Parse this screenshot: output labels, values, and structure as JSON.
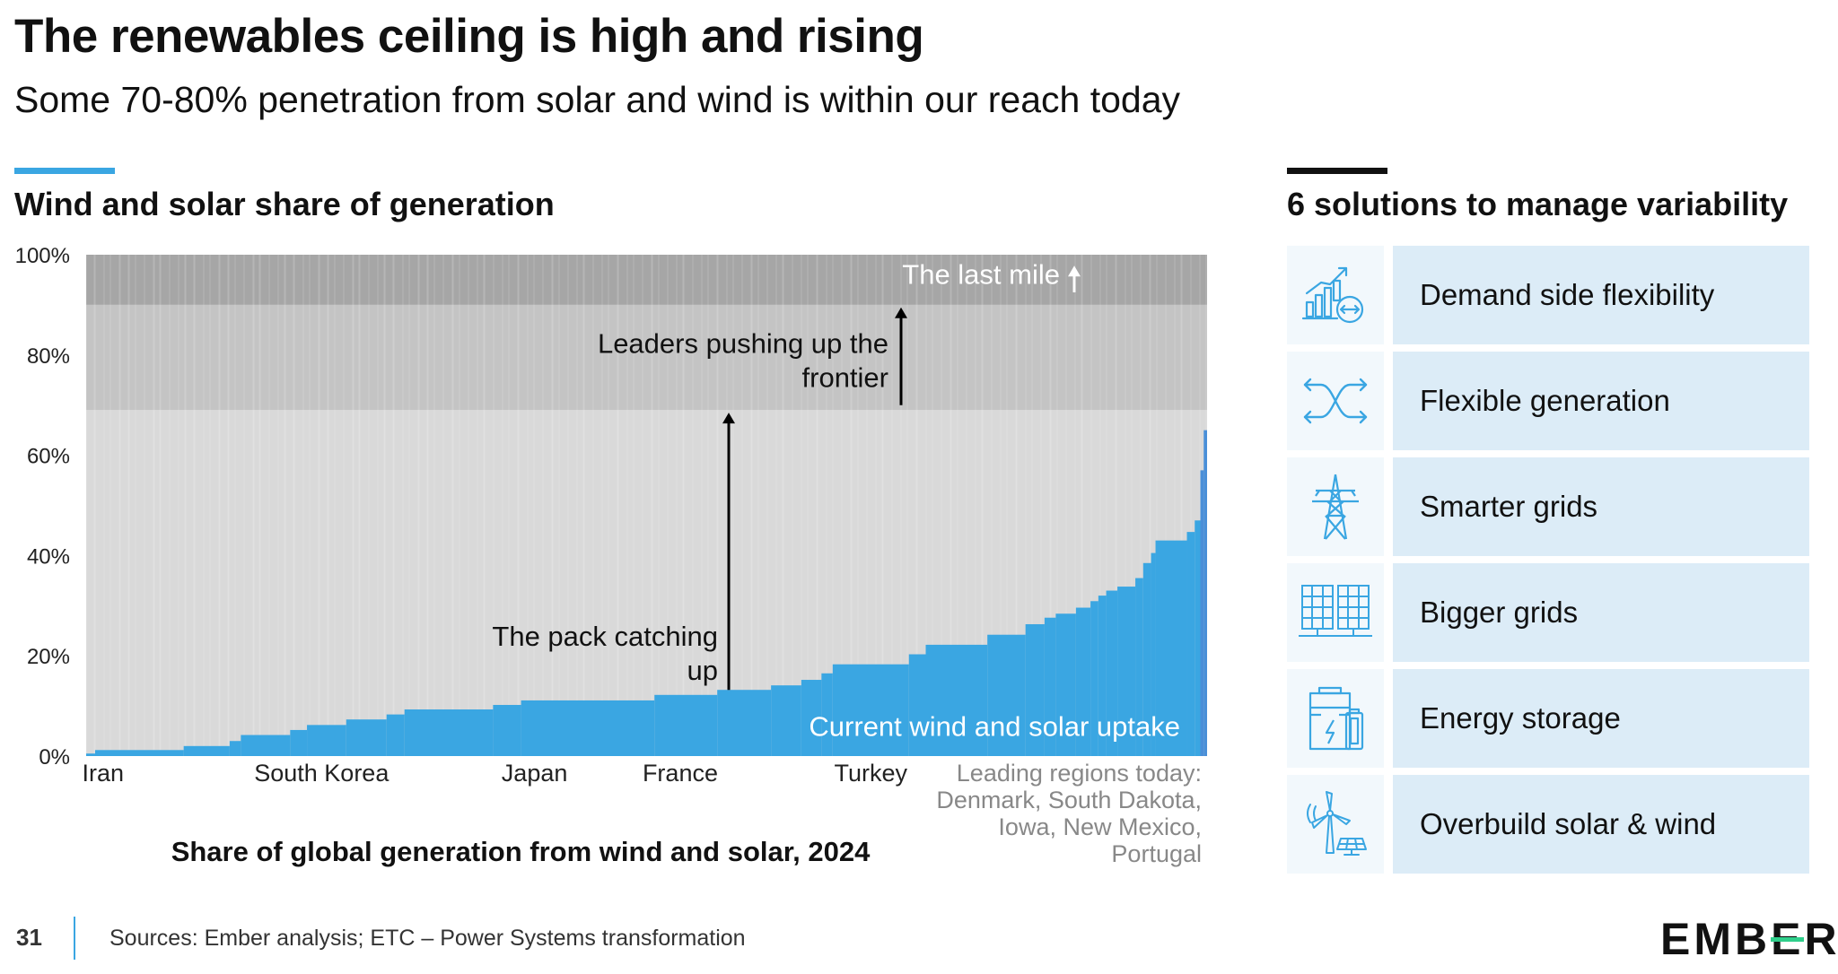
{
  "title": "The renewables ceiling is high and rising",
  "subtitle": "Some 70-80% penetration from solar and wind is within our reach today",
  "chart_section_title": "Wind and solar share of generation",
  "solutions_title": "6 solutions to manage variability",
  "colors": {
    "accent_blue": "#3aa6e2",
    "bar_blue": "#3aa6e2",
    "band_light": "#d9d9d9",
    "band_mid": "#c4c4c4",
    "band_dark": "#a6a6a6",
    "solution_bg": "#dcecf7",
    "logo_green": "#2fcf8b"
  },
  "chart_data": {
    "type": "bar",
    "title": "Wind and solar share of generation",
    "xlabel": "Share of global generation from wind and solar, 2024",
    "ylabel": "",
    "ylim": [
      0,
      100
    ],
    "yticks": [
      "0%",
      "20%",
      "40%",
      "60%",
      "80%",
      "100%"
    ],
    "xlim": [
      0,
      100
    ],
    "x_category_labels": [
      {
        "label": "Iran",
        "x": 1.5
      },
      {
        "label": "South Korea",
        "x": 21
      },
      {
        "label": "Japan",
        "x": 40
      },
      {
        "label": "France",
        "x": 53
      },
      {
        "label": "Turkey",
        "x": 70
      }
    ],
    "leading_regions_label": [
      "Leading regions today:",
      "Denmark, South Dakota,",
      "Iowa, New Mexico,",
      "Portugal"
    ],
    "bands": [
      {
        "name": "The pack catching up",
        "from": 0,
        "to": 69
      },
      {
        "name": "Leaders pushing up the frontier",
        "from": 69,
        "to": 90
      },
      {
        "name": "The last mile",
        "from": 90,
        "to": 100
      }
    ],
    "annotations": {
      "pack": [
        "The pack catching",
        "up"
      ],
      "leaders": [
        "Leaders pushing up the",
        "frontier"
      ],
      "last_mile": "The last mile",
      "current": "Current wind and solar uptake"
    },
    "series": [
      {
        "name": "Wind and solar share",
        "segments": [
          {
            "x0": 0.0,
            "x1": 0.8,
            "y": 0.5
          },
          {
            "x0": 0.8,
            "x1": 8.7,
            "y": 1.2
          },
          {
            "x0": 8.7,
            "x1": 12.8,
            "y": 2.0
          },
          {
            "x0": 12.8,
            "x1": 13.8,
            "y": 3.0
          },
          {
            "x0": 13.8,
            "x1": 18.2,
            "y": 4.2
          },
          {
            "x0": 18.2,
            "x1": 19.7,
            "y": 5.2
          },
          {
            "x0": 19.7,
            "x1": 23.2,
            "y": 6.2
          },
          {
            "x0": 23.2,
            "x1": 26.8,
            "y": 7.3
          },
          {
            "x0": 26.8,
            "x1": 28.4,
            "y": 8.3
          },
          {
            "x0": 28.4,
            "x1": 36.3,
            "y": 9.3
          },
          {
            "x0": 36.3,
            "x1": 38.8,
            "y": 10.2
          },
          {
            "x0": 38.8,
            "x1": 50.7,
            "y": 11.1
          },
          {
            "x0": 50.7,
            "x1": 56.3,
            "y": 12.2
          },
          {
            "x0": 56.3,
            "x1": 61.1,
            "y": 13.2
          },
          {
            "x0": 61.1,
            "x1": 63.8,
            "y": 14.1
          },
          {
            "x0": 63.8,
            "x1": 65.6,
            "y": 15.2
          },
          {
            "x0": 65.6,
            "x1": 66.6,
            "y": 16.5
          },
          {
            "x0": 66.6,
            "x1": 73.4,
            "y": 18.3
          },
          {
            "x0": 73.4,
            "x1": 74.9,
            "y": 20.3
          },
          {
            "x0": 74.9,
            "x1": 80.4,
            "y": 22.2
          },
          {
            "x0": 80.4,
            "x1": 83.8,
            "y": 24.2
          },
          {
            "x0": 83.8,
            "x1": 85.5,
            "y": 26.3
          },
          {
            "x0": 85.5,
            "x1": 86.5,
            "y": 27.6
          },
          {
            "x0": 86.5,
            "x1": 88.3,
            "y": 28.4
          },
          {
            "x0": 88.3,
            "x1": 89.6,
            "y": 29.6
          },
          {
            "x0": 89.6,
            "x1": 90.3,
            "y": 30.9
          },
          {
            "x0": 90.3,
            "x1": 91.0,
            "y": 32.0
          },
          {
            "x0": 91.0,
            "x1": 92.0,
            "y": 33.0
          },
          {
            "x0": 92.0,
            "x1": 93.6,
            "y": 33.8
          },
          {
            "x0": 93.6,
            "x1": 94.3,
            "y": 35.5
          },
          {
            "x0": 94.3,
            "x1": 95.0,
            "y": 38.5
          },
          {
            "x0": 95.0,
            "x1": 95.4,
            "y": 40.5
          },
          {
            "x0": 95.4,
            "x1": 98.2,
            "y": 43.0
          },
          {
            "x0": 98.2,
            "x1": 98.9,
            "y": 44.7
          },
          {
            "x0": 98.9,
            "x1": 99.4,
            "y": 47.0
          },
          {
            "x0": 99.4,
            "x1": 99.7,
            "y": 57.0
          },
          {
            "x0": 99.7,
            "x1": 100.0,
            "y": 65.0
          }
        ]
      }
    ]
  },
  "solutions": [
    {
      "icon": "demand-flexibility-icon",
      "label": "Demand side flexibility"
    },
    {
      "icon": "flexible-generation-icon",
      "label": "Flexible generation"
    },
    {
      "icon": "transmission-tower-icon",
      "label": "Smarter grids"
    },
    {
      "icon": "grid-panels-icon",
      "label": "Bigger grids"
    },
    {
      "icon": "battery-storage-icon",
      "label": "Energy storage"
    },
    {
      "icon": "solar-wind-icon",
      "label": "Overbuild solar & wind"
    }
  ],
  "footer": {
    "page_number": "31",
    "sources": "Sources: Ember analysis; ETC – Power Systems transformation"
  },
  "logo": {
    "part1": "EMB",
    "part2": "E",
    "part3": "R"
  }
}
